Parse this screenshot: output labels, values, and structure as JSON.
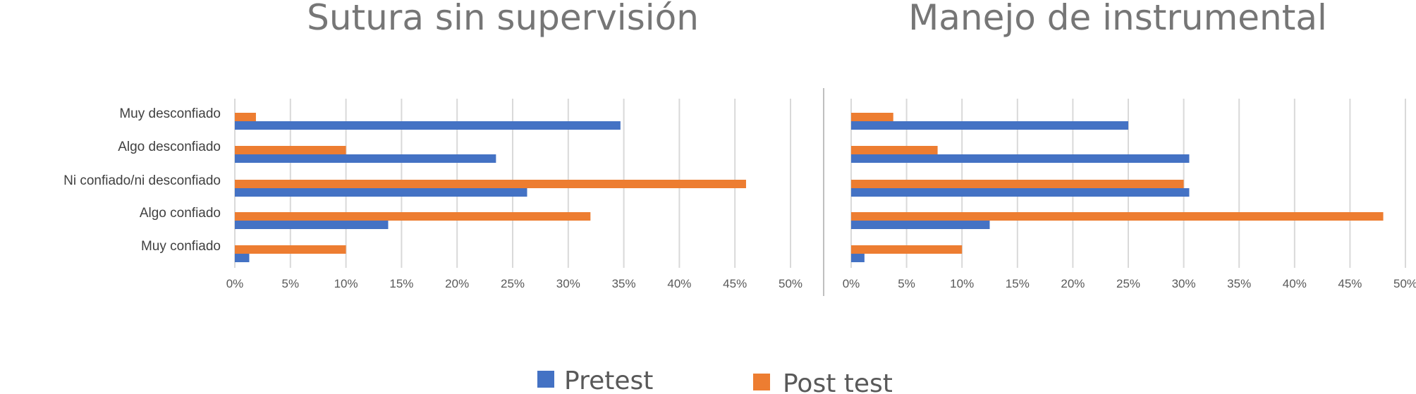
{
  "chart_data": [
    {
      "type": "bar",
      "orientation": "horizontal",
      "title": "Sutura sin supervisión",
      "categories": [
        "Muy desconfiado",
        "Algo desconfiado",
        "Ni confiado/ni desconfiado",
        "Algo confiado",
        "Muy confiado"
      ],
      "series": [
        {
          "name": "Pretest",
          "values": [
            34.7,
            23.5,
            26.3,
            13.8,
            1.3
          ]
        },
        {
          "name": "Post test",
          "values": [
            1.9,
            10,
            46,
            32,
            10
          ]
        }
      ],
      "xlim": [
        0,
        50
      ],
      "xticks": [
        "0%",
        "5%",
        "10%",
        "15%",
        "20%",
        "25%",
        "30%",
        "35%",
        "40%",
        "45%",
        "50%"
      ],
      "grid": true
    },
    {
      "type": "bar",
      "orientation": "horizontal",
      "title": "Manejo de instrumental",
      "categories": [
        "Muy desconfiado",
        "Algo desconfiado",
        "Ni confiado/ni desconfiado",
        "Algo confiado",
        "Muy confiado"
      ],
      "series": [
        {
          "name": "Pretest",
          "values": [
            25,
            30.5,
            30.5,
            12.5,
            1.2
          ]
        },
        {
          "name": "Post test",
          "values": [
            3.8,
            7.8,
            30,
            48,
            10
          ]
        }
      ],
      "xlim": [
        0,
        50
      ],
      "xticks": [
        "0%",
        "5%",
        "10%",
        "15%",
        "20%",
        "25%",
        "30%",
        "35%",
        "40%",
        "45%",
        "50%"
      ],
      "grid": true
    }
  ],
  "legend": {
    "placement": "bottom",
    "items": [
      {
        "label": "Pretest",
        "color": "#4472C4"
      },
      {
        "label": "Post test",
        "color": "#ED7D31"
      }
    ]
  },
  "colors": {
    "pretest": "#4472C4",
    "posttest": "#ED7D31",
    "grid": "#D9D9D9",
    "divider": "#BFBFBF"
  }
}
